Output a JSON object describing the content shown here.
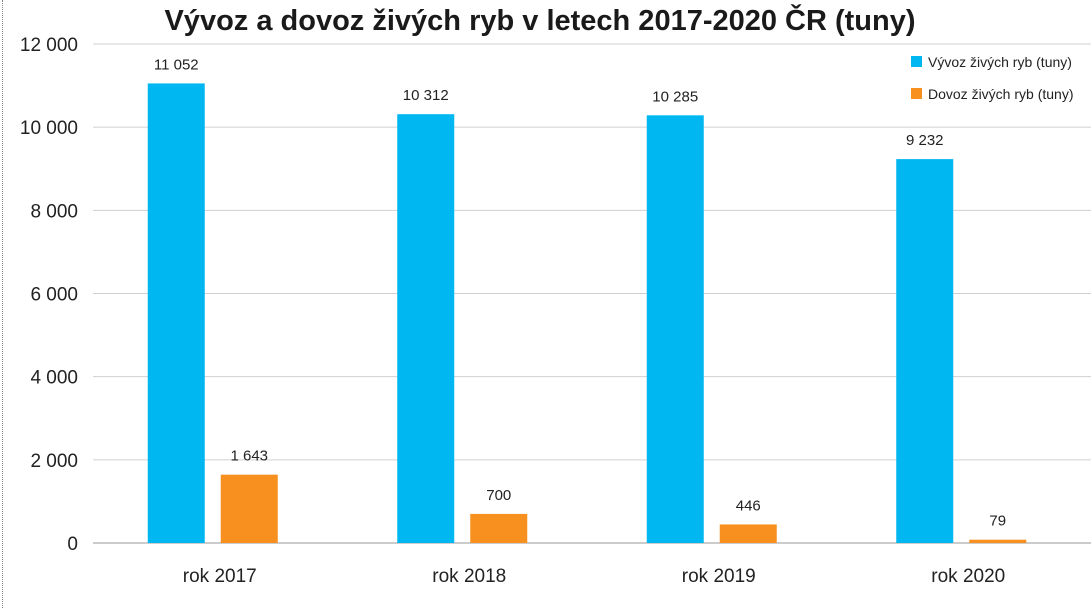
{
  "chart_data": {
    "type": "bar",
    "title": "Vývoz a dovoz živých ryb v letech 2017-2020 ČR (tuny)",
    "xlabel": "",
    "ylabel": "",
    "categories": [
      "rok 2017",
      "rok 2018",
      "rok 2019",
      "rok 2020"
    ],
    "series": [
      {
        "name": "Vývoz živých ryb (tuny)",
        "color": "#00b7f1",
        "values": [
          11052,
          10312,
          10285,
          9232
        ],
        "labels": [
          "11 052",
          "10 312",
          "10 285",
          "9 232"
        ]
      },
      {
        "name": "Dovoz živých ryb (tuny)",
        "color": "#f7901e",
        "values": [
          1643,
          700,
          446,
          79
        ],
        "labels": [
          "1 643",
          "700",
          "446",
          "79"
        ]
      }
    ],
    "ylim": [
      0,
      12000
    ],
    "yticks": [
      0,
      2000,
      4000,
      6000,
      8000,
      10000,
      12000
    ],
    "ytick_labels": [
      "0",
      "2 000",
      "4 000",
      "6 000",
      "8 000",
      "10 000",
      "12 000"
    ],
    "grid": true,
    "legend_position": "top-right"
  }
}
